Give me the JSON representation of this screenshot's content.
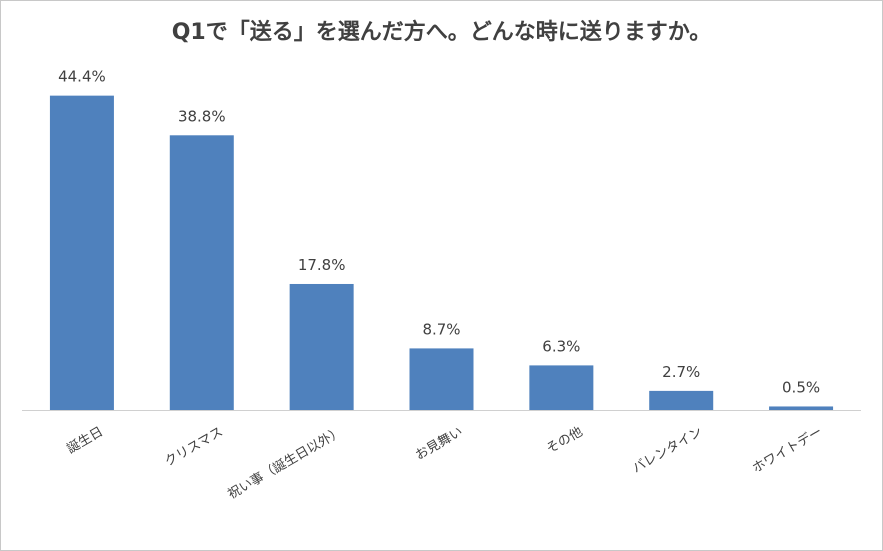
{
  "chart_data": {
    "type": "bar",
    "title": "Q1で「送る」を選んだ方へ。どんな時に送りますか。",
    "categories": [
      "誕生日",
      "クリスマス",
      "祝い事（誕生日以外）",
      "お見舞い",
      "その他",
      "バレンタイン",
      "ホワイトデー"
    ],
    "values": [
      44.4,
      38.8,
      17.8,
      8.7,
      6.3,
      2.7,
      0.5
    ],
    "data_labels": [
      "44.4%",
      "38.8%",
      "17.8%",
      "8.7%",
      "6.3%",
      "2.7%",
      "0.5%"
    ],
    "ylim": [
      0,
      50
    ],
    "grid": false,
    "bar_color": "#4f81bd",
    "axis_color": "#d0d0d0"
  }
}
